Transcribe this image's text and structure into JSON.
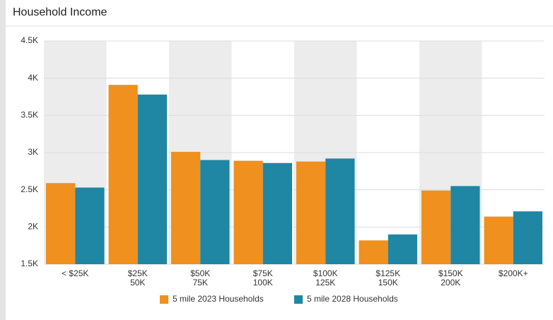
{
  "chart_data": {
    "type": "bar",
    "title": "Household Income",
    "categories": [
      [
        "< $25K"
      ],
      [
        "$25K",
        "50K"
      ],
      [
        "$50K",
        "75K"
      ],
      [
        "$75K",
        "100K"
      ],
      [
        "$100K",
        "125K"
      ],
      [
        "$125K",
        "150K"
      ],
      [
        "$150K",
        "200K"
      ],
      [
        "$200K+"
      ]
    ],
    "series": [
      {
        "name": "5 mile 2023 Households",
        "color": "#f0901e",
        "values": [
          2590,
          3910,
          3010,
          2890,
          2880,
          1820,
          2490,
          2140
        ]
      },
      {
        "name": "5 mile 2028 Households",
        "color": "#1f86a4",
        "values": [
          2530,
          3780,
          2900,
          2860,
          2920,
          1900,
          2550,
          2210
        ]
      }
    ],
    "ylim": [
      1500,
      4500
    ],
    "yticks": [
      {
        "value": 1500,
        "label": "1.5K"
      },
      {
        "value": 2000,
        "label": "2K"
      },
      {
        "value": 2500,
        "label": "2.5K"
      },
      {
        "value": 3000,
        "label": "3K"
      },
      {
        "value": 3500,
        "label": "3.5K"
      },
      {
        "value": 4000,
        "label": "4K"
      },
      {
        "value": 4500,
        "label": "4.5K"
      }
    ],
    "grid": true,
    "legend": "bottom"
  }
}
